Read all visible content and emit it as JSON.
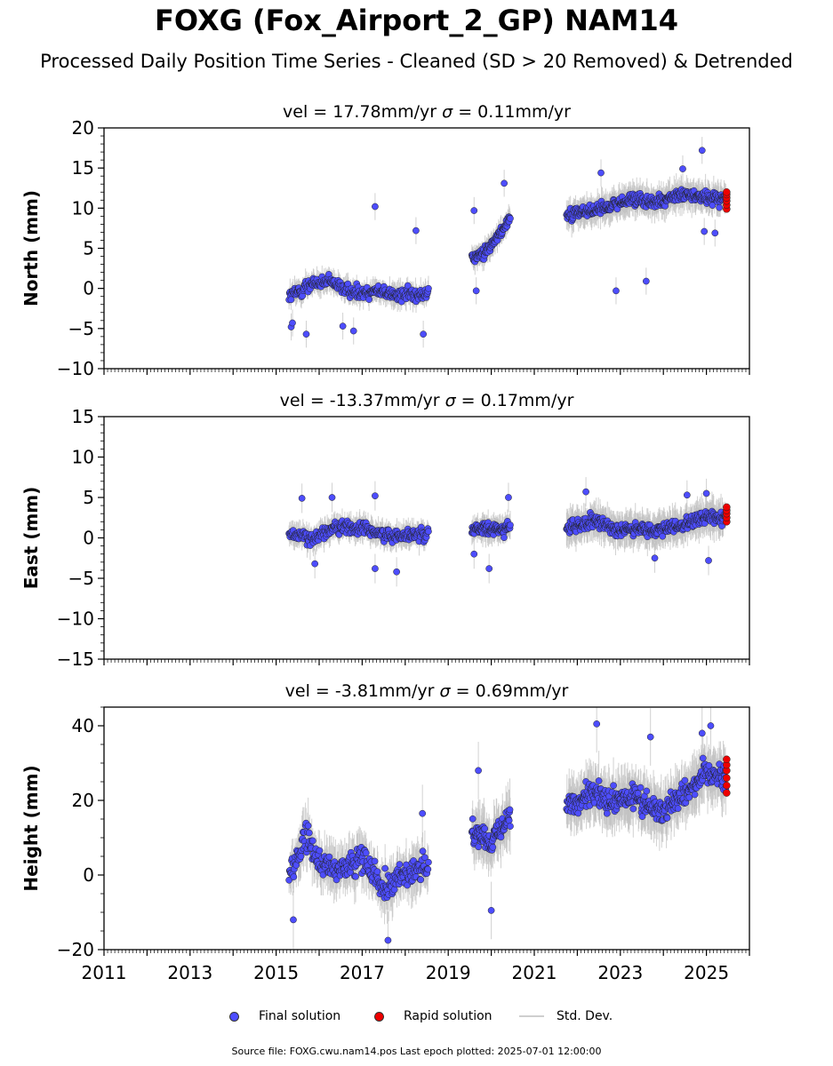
{
  "title": "FOXG (Fox_Airport_2_GP) NAM14",
  "subtitle": "Processed Daily Position Time Series - Cleaned (SD > 20 Removed) & Detrended",
  "colors": {
    "final": "#4d4dff",
    "rapid": "#ee0000",
    "stddev": "#bdbdbd",
    "marker_edge": "#222222"
  },
  "legend": {
    "final_label": "Final solution",
    "rapid_label": "Rapid solution",
    "stddev_label": "Std. Dev."
  },
  "source_note": "Source file: FOXG.cwu.nam14.pos  Last epoch plotted: 2025-07-01 12:00:00",
  "chart_data": [
    {
      "type": "scatter",
      "title_vel": "vel = 17.78mm/yr",
      "title_sigma": "= 0.11mm/yr",
      "ylabel": "North (mm)",
      "ylim": [
        -10,
        20
      ],
      "yticks": [
        -10,
        -5,
        0,
        5,
        10,
        15,
        20
      ],
      "ytick_labels": [
        "−10",
        "−5",
        "0",
        "5",
        "10",
        "15",
        "20"
      ],
      "xlim": [
        2011,
        2026
      ],
      "show_xtick_labels": false,
      "segments": [
        {
          "x_start": 2015.3,
          "x_end": 2018.55,
          "baseline": [
            [
              2015.3,
              -1.0
            ],
            [
              2015.8,
              0.5
            ],
            [
              2016.2,
              0.8
            ],
            [
              2016.8,
              -0.5
            ],
            [
              2017.3,
              -0.3
            ],
            [
              2017.8,
              -0.8
            ],
            [
              2018.55,
              -0.6
            ]
          ],
          "noise": 1.0,
          "err": 1.2,
          "step": 0.012
        },
        {
          "x_start": 2019.55,
          "x_end": 2020.45,
          "baseline": [
            [
              2019.55,
              3.5
            ],
            [
              2019.9,
              4.8
            ],
            [
              2020.2,
              6.8
            ],
            [
              2020.45,
              9.0
            ]
          ],
          "noise": 0.9,
          "err": 1.2,
          "step": 0.009
        },
        {
          "x_start": 2021.75,
          "x_end": 2025.45,
          "baseline": [
            [
              2021.75,
              9.2
            ],
            [
              2022.3,
              9.6
            ],
            [
              2022.9,
              10.5
            ],
            [
              2023.3,
              11.2
            ],
            [
              2023.8,
              10.6
            ],
            [
              2024.3,
              11.6
            ],
            [
              2024.8,
              11.5
            ],
            [
              2025.45,
              11.2
            ]
          ],
          "noise": 1.0,
          "err": 1.6,
          "step": 0.01
        }
      ],
      "outliers": [
        [
          2015.35,
          -4.8
        ],
        [
          2015.38,
          -4.3
        ],
        [
          2015.7,
          -5.7
        ],
        [
          2016.55,
          -4.7
        ],
        [
          2016.8,
          -5.3
        ],
        [
          2017.3,
          10.2
        ],
        [
          2018.25,
          7.2
        ],
        [
          2018.42,
          -5.7
        ],
        [
          2019.6,
          9.7
        ],
        [
          2019.65,
          -0.3
        ],
        [
          2020.3,
          13.1
        ],
        [
          2022.9,
          -0.3
        ],
        [
          2023.6,
          0.9
        ],
        [
          2024.9,
          17.2
        ],
        [
          2022.55,
          14.4
        ],
        [
          2024.45,
          14.9
        ],
        [
          2025.2,
          6.9
        ],
        [
          2024.95,
          7.1
        ]
      ],
      "rapid": {
        "x": 2025.47,
        "y": [
          9.9,
          10.4,
          10.9,
          11.3,
          11.7,
          12.0
        ]
      }
    },
    {
      "type": "scatter",
      "title_vel": "vel = -13.37mm/yr",
      "title_sigma": "= 0.17mm/yr",
      "ylabel": "East (mm)",
      "ylim": [
        -15,
        15
      ],
      "yticks": [
        -15,
        -10,
        -5,
        0,
        5,
        10,
        15
      ],
      "ytick_labels": [
        "−15",
        "−10",
        "−5",
        "0",
        "5",
        "10",
        "15"
      ],
      "xlim": [
        2011,
        2026
      ],
      "show_xtick_labels": false,
      "segments": [
        {
          "x_start": 2015.3,
          "x_end": 2018.55,
          "baseline": [
            [
              2015.3,
              0.4
            ],
            [
              2015.9,
              0.0
            ],
            [
              2016.4,
              1.4
            ],
            [
              2017.0,
              1.2
            ],
            [
              2017.6,
              0.3
            ],
            [
              2018.55,
              0.5
            ]
          ],
          "noise": 1.0,
          "err": 1.3,
          "step": 0.012
        },
        {
          "x_start": 2019.55,
          "x_end": 2020.45,
          "baseline": [
            [
              2019.55,
              1.2
            ],
            [
              2020.0,
              1.0
            ],
            [
              2020.45,
              1.3
            ]
          ],
          "noise": 0.9,
          "err": 1.3,
          "step": 0.009
        },
        {
          "x_start": 2021.75,
          "x_end": 2025.45,
          "baseline": [
            [
              2021.75,
              1.2
            ],
            [
              2022.4,
              2.0
            ],
            [
              2023.0,
              1.0
            ],
            [
              2023.6,
              1.0
            ],
            [
              2024.3,
              1.3
            ],
            [
              2024.8,
              2.4
            ],
            [
              2025.45,
              2.5
            ]
          ],
          "noise": 1.0,
          "err": 1.8,
          "step": 0.01
        }
      ],
      "outliers": [
        [
          2015.6,
          4.9
        ],
        [
          2015.9,
          -3.2
        ],
        [
          2016.3,
          5.0
        ],
        [
          2017.3,
          5.2
        ],
        [
          2017.3,
          -3.8
        ],
        [
          2017.8,
          -4.2
        ],
        [
          2019.6,
          -2.0
        ],
        [
          2019.95,
          -3.8
        ],
        [
          2020.4,
          5.0
        ],
        [
          2022.2,
          5.7
        ],
        [
          2024.55,
          5.3
        ],
        [
          2025.0,
          5.5
        ],
        [
          2025.05,
          -2.8
        ],
        [
          2023.8,
          -2.5
        ]
      ],
      "rapid": {
        "x": 2025.47,
        "y": [
          2.0,
          2.5,
          3.0,
          3.4,
          3.8
        ]
      }
    },
    {
      "type": "scatter",
      "title_vel": "vel = -3.81mm/yr",
      "title_sigma": "= 0.69mm/yr",
      "ylabel": "Height (mm)",
      "ylim": [
        -20,
        45
      ],
      "yticks": [
        -20,
        0,
        20,
        40
      ],
      "ytick_labels": [
        "−20",
        "0",
        "20",
        "40"
      ],
      "xlim": [
        2011,
        2026
      ],
      "show_xtick_labels": true,
      "xticks": [
        2011,
        2013,
        2015,
        2017,
        2019,
        2021,
        2023,
        2025
      ],
      "segments": [
        {
          "x_start": 2015.3,
          "x_end": 2018.55,
          "baseline": [
            [
              2015.3,
              0.0
            ],
            [
              2015.7,
              10.0
            ],
            [
              2016.0,
              3.0
            ],
            [
              2016.5,
              1.0
            ],
            [
              2017.0,
              5.0
            ],
            [
              2017.5,
              -3.0
            ],
            [
              2018.0,
              0.0
            ],
            [
              2018.55,
              2.0
            ]
          ],
          "noise": 4.2,
          "err": 5.5,
          "step": 0.012
        },
        {
          "x_start": 2019.55,
          "x_end": 2020.45,
          "baseline": [
            [
              2019.55,
              12.0
            ],
            [
              2020.0,
              9.0
            ],
            [
              2020.45,
              17.0
            ]
          ],
          "noise": 4.0,
          "err": 6.0,
          "step": 0.009
        },
        {
          "x_start": 2021.75,
          "x_end": 2025.45,
          "baseline": [
            [
              2021.75,
              18.0
            ],
            [
              2022.3,
              22.0
            ],
            [
              2022.8,
              19.0
            ],
            [
              2023.3,
              21.0
            ],
            [
              2023.9,
              17.0
            ],
            [
              2024.5,
              22.0
            ],
            [
              2025.0,
              28.0
            ],
            [
              2025.45,
              26.0
            ]
          ],
          "noise": 4.2,
          "err": 6.0,
          "step": 0.01
        }
      ],
      "outliers": [
        [
          2015.4,
          -12.0
        ],
        [
          2017.6,
          -17.5
        ],
        [
          2018.4,
          16.5
        ],
        [
          2019.7,
          28.0
        ],
        [
          2020.0,
          -9.5
        ],
        [
          2022.45,
          40.5
        ],
        [
          2023.7,
          37.0
        ],
        [
          2024.9,
          38.0
        ],
        [
          2025.1,
          40.0
        ]
      ],
      "rapid": {
        "x": 2025.47,
        "y": [
          22.0,
          24.0,
          26.0,
          28.0,
          29.5,
          31.0
        ]
      }
    }
  ]
}
